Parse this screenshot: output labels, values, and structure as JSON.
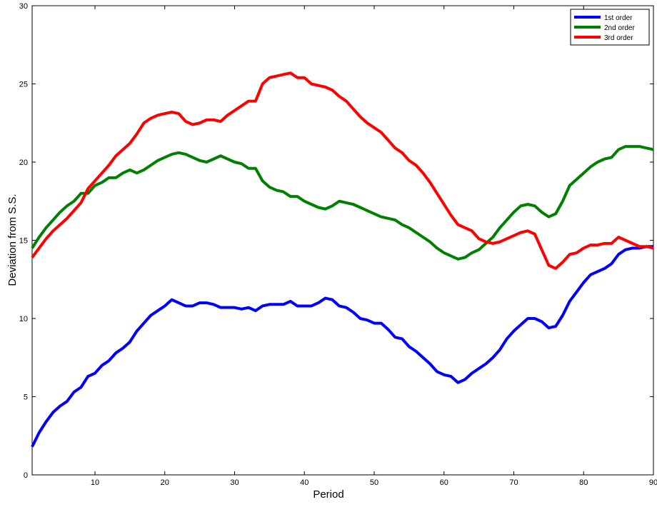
{
  "chart_data": {
    "type": "line",
    "xlabel": "Period",
    "ylabel": "Deviation from S.S.",
    "x": [
      1,
      2,
      3,
      4,
      5,
      6,
      7,
      8,
      9,
      10,
      11,
      12,
      13,
      14,
      15,
      16,
      17,
      18,
      19,
      20,
      21,
      22,
      23,
      24,
      25,
      26,
      27,
      28,
      29,
      30,
      31,
      32,
      33,
      34,
      35,
      36,
      37,
      38,
      39,
      40,
      41,
      42,
      43,
      44,
      45,
      46,
      47,
      48,
      49,
      50,
      51,
      52,
      53,
      54,
      55,
      56,
      57,
      58,
      59,
      60,
      61,
      62,
      63,
      64,
      65,
      66,
      67,
      68,
      69,
      70,
      71,
      72,
      73,
      74,
      75,
      76,
      77,
      78,
      79,
      80,
      81,
      82,
      83,
      84,
      85,
      86,
      87,
      88,
      89,
      90
    ],
    "series": [
      {
        "name": "1st order",
        "color": "#0000ff",
        "values": [
          1.8,
          2.7,
          3.4,
          4.0,
          4.4,
          4.7,
          5.3,
          5.6,
          6.3,
          6.5,
          7.0,
          7.3,
          7.8,
          8.1,
          8.5,
          9.2,
          9.7,
          10.2,
          10.5,
          10.8,
          11.2,
          11.0,
          10.8,
          10.8,
          11.0,
          11.0,
          10.9,
          10.7,
          10.7,
          10.7,
          10.6,
          10.7,
          10.5,
          10.8,
          10.9,
          10.9,
          10.9,
          11.1,
          10.8,
          10.8,
          10.8,
          11.0,
          11.3,
          11.2,
          10.8,
          10.7,
          10.4,
          10.0,
          9.9,
          9.7,
          9.7,
          9.3,
          8.8,
          8.7,
          8.2,
          7.9,
          7.5,
          7.1,
          6.6,
          6.4,
          6.3,
          5.9,
          6.1,
          6.5,
          6.8,
          7.1,
          7.5,
          8.0,
          8.7,
          9.2,
          9.6,
          10.0,
          10.0,
          9.8,
          9.4,
          9.5,
          10.2,
          11.1,
          11.7,
          12.3,
          12.8,
          13.0,
          13.2,
          13.5,
          14.1,
          14.4,
          14.5,
          14.5,
          14.6,
          14.6
        ]
      },
      {
        "name": "2nd order",
        "color": "#008000",
        "values": [
          14.5,
          15.2,
          15.8,
          16.3,
          16.8,
          17.2,
          17.5,
          18.0,
          18.0,
          18.5,
          18.7,
          19.0,
          19.0,
          19.3,
          19.5,
          19.3,
          19.5,
          19.8,
          20.1,
          20.3,
          20.5,
          20.6,
          20.5,
          20.3,
          20.1,
          20.0,
          20.2,
          20.4,
          20.2,
          20.0,
          19.9,
          19.6,
          19.6,
          18.8,
          18.4,
          18.2,
          18.1,
          17.8,
          17.8,
          17.5,
          17.3,
          17.1,
          17.0,
          17.2,
          17.5,
          17.4,
          17.3,
          17.1,
          16.9,
          16.7,
          16.5,
          16.4,
          16.3,
          16.0,
          15.8,
          15.5,
          15.2,
          14.9,
          14.5,
          14.2,
          14.0,
          13.8,
          13.9,
          14.2,
          14.4,
          14.8,
          15.2,
          15.8,
          16.3,
          16.8,
          17.2,
          17.3,
          17.2,
          16.8,
          16.5,
          16.7,
          17.5,
          18.5,
          18.9,
          19.3,
          19.7,
          20.0,
          20.2,
          20.3,
          20.8,
          21.0,
          21.0,
          21.0,
          20.9,
          20.8
        ]
      },
      {
        "name": "3rd order",
        "color": "#ff0000",
        "values": [
          13.9,
          14.5,
          15.1,
          15.6,
          16.0,
          16.4,
          16.9,
          17.4,
          18.3,
          18.8,
          19.3,
          19.8,
          20.4,
          20.8,
          21.2,
          21.8,
          22.5,
          22.8,
          23.0,
          23.1,
          23.2,
          23.1,
          22.6,
          22.4,
          22.5,
          22.7,
          22.7,
          22.6,
          23.0,
          23.3,
          23.6,
          23.9,
          23.9,
          25.0,
          25.4,
          25.5,
          25.6,
          25.7,
          25.4,
          25.4,
          25.0,
          24.9,
          24.8,
          24.6,
          24.2,
          23.9,
          23.4,
          22.9,
          22.5,
          22.2,
          21.9,
          21.4,
          20.9,
          20.6,
          20.1,
          19.8,
          19.3,
          18.7,
          18.0,
          17.3,
          16.6,
          16.0,
          15.8,
          15.6,
          15.1,
          14.9,
          14.8,
          14.9,
          15.1,
          15.3,
          15.5,
          15.6,
          15.4,
          14.4,
          13.4,
          13.2,
          13.6,
          14.1,
          14.2,
          14.5,
          14.7,
          14.7,
          14.8,
          14.8,
          15.2,
          15.0,
          14.8,
          14.6,
          14.6,
          14.5
        ]
      }
    ],
    "xlim": [
      1,
      90
    ],
    "xticks": [
      10,
      20,
      30,
      40,
      50,
      60,
      70,
      80,
      90
    ],
    "ylim": [
      0,
      30
    ],
    "yticks": [
      0,
      5,
      10,
      15,
      20,
      25,
      30
    ],
    "legend": "upper right"
  }
}
